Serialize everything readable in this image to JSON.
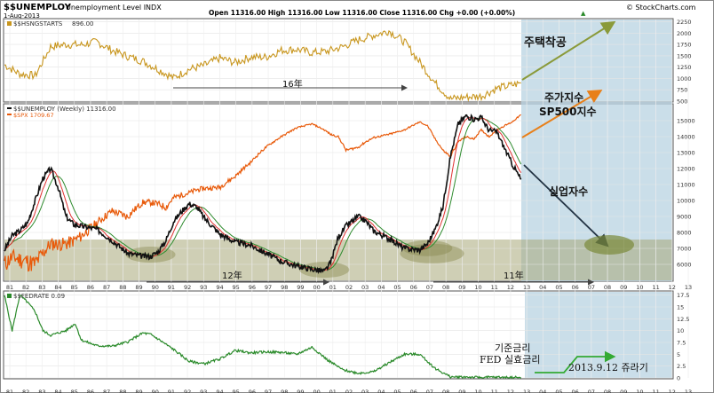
{
  "header": {
    "symbol": "$$UNEMPLOY",
    "name": "Unemployment Level INDX",
    "date": "1-Aug-2013",
    "ohlc": "Open 11316.00   High 11316.00   Low 11316.00   Close 11316.00   Chg +0.00 (+0.00%)",
    "arrow_icon": "up-triangle",
    "brand": "© StockCharts.com"
  },
  "colors": {
    "housing": "#c8961e",
    "unemploy": "#111111",
    "spx": "#e85a0a",
    "ma_red": "#e03030",
    "ma_green": "#2e8b2e",
    "fed": "#2a8a2a",
    "band": "#a8a878",
    "projection": "#b8d3e2"
  },
  "panels": {
    "housing": {
      "legend_prefix": "■",
      "legend": "$$HSNGSTARTS",
      "last_value": "896.00"
    },
    "unemploy": {
      "legend": "$$UNEMPLOY (Weekly) 11316.00",
      "legend2": "$SPX 1709.67"
    },
    "fed": {
      "legend": "$$FEDRATE 0.09"
    }
  },
  "annotations": {
    "housing_label": "주택착공",
    "span16": "16年",
    "spx_label1": "주가지수",
    "spx_label2": "SP500지수",
    "unemploy_label": "실업자수",
    "span12": "12年",
    "span11": "11年",
    "fed_label1": "기준금리",
    "fed_label2": "FED 실효금리",
    "fed_label3": "2013.9.12 쥬라기"
  },
  "chart_data": [
    {
      "type": "line",
      "title": "$$HSNGSTARTS",
      "x": [
        1980,
        1981,
        1982,
        1983,
        1984,
        1985,
        1986,
        1987,
        1988,
        1989,
        1990,
        1991,
        1992,
        1993,
        1994,
        1995,
        1996,
        1997,
        1998,
        1999,
        2000,
        2001,
        2002,
        2003,
        2004,
        2005,
        2006,
        2007,
        2008,
        2009,
        2010,
        2011,
        2012,
        2013.58
      ],
      "series": [
        {
          "name": "$$HSNGSTARTS",
          "values": [
            1300,
            1100,
            1060,
            1700,
            1750,
            1740,
            1810,
            1620,
            1490,
            1380,
            1200,
            1010,
            1200,
            1290,
            1450,
            1350,
            1470,
            1470,
            1620,
            1640,
            1570,
            1600,
            1700,
            1850,
            1950,
            2050,
            1810,
            1360,
            900,
            550,
            590,
            610,
            780,
            896
          ]
        }
      ],
      "ylim": [
        500,
        2300
      ],
      "yticks": [
        500,
        750,
        1000,
        1250,
        1500,
        1750,
        2000,
        2250
      ]
    },
    {
      "type": "line",
      "title": "$$UNEMPLOY (Weekly)",
      "x": [
        1980,
        1980.5,
        1981,
        1981.5,
        1982,
        1982.5,
        1983,
        1983.5,
        1984,
        1984.5,
        1985,
        1986,
        1987,
        1988,
        1989,
        1989.5,
        1990,
        1990.5,
        1991,
        1991.5,
        1992,
        1992.5,
        1993,
        1994,
        1995,
        1996,
        1997,
        1998,
        1999,
        2000,
        2000.8,
        2001.2,
        2001.7,
        2002.2,
        2003,
        2003.5,
        2004,
        2005,
        2006,
        2007,
        2007.5,
        2008,
        2008.5,
        2009,
        2009.5,
        2010,
        2010.5,
        2011,
        2011.5,
        2012,
        2012.5,
        2013,
        2013.58
      ],
      "series": [
        {
          "name": "$$UNEMPLOY (Weekly)",
          "values": [
            6900,
            7800,
            8100,
            8600,
            10000,
            11400,
            12000,
            10800,
            9000,
            8500,
            8400,
            8200,
            7500,
            6700,
            6500,
            6500,
            6800,
            7500,
            8700,
            9300,
            9800,
            9600,
            8900,
            7900,
            7400,
            7200,
            6700,
            6200,
            5900,
            5700,
            5550,
            6100,
            7700,
            8400,
            9000,
            8700,
            8100,
            7600,
            7000,
            6900,
            7300,
            8200,
            9600,
            12800,
            14800,
            15300,
            15100,
            15200,
            14400,
            14300,
            13300,
            12300,
            11316
          ]
        },
        {
          "name": "$SPX",
          "values": [
            115,
            130,
            125,
            120,
            115,
            140,
            165,
            165,
            165,
            175,
            190,
            240,
            300,
            270,
            350,
            350,
            340,
            320,
            380,
            400,
            415,
            440,
            450,
            460,
            560,
            720,
            950,
            1150,
            1350,
            1450,
            1300,
            1200,
            1150,
            900,
            950,
            1050,
            1130,
            1200,
            1300,
            1500,
            1400,
            1100,
            900,
            800,
            1050,
            1150,
            1100,
            1300,
            1150,
            1300,
            1400,
            1500,
            1709.67
          ]
        }
      ],
      "ylim": [
        5000,
        16000
      ],
      "yticks": [
        6000,
        7000,
        8000,
        9000,
        10000,
        11000,
        12000,
        13000,
        14000,
        15000
      ]
    },
    {
      "type": "line",
      "title": "$$FEDRATE",
      "x": [
        1980,
        1980.5,
        1981,
        1981.5,
        1982,
        1982.5,
        1983,
        1984,
        1984.6,
        1985,
        1986,
        1987,
        1988,
        1989,
        1989.5,
        1990,
        1991,
        1992,
        1993,
        1994,
        1995,
        1996,
        1997,
        1998,
        1999,
        2000,
        2001,
        2002,
        2003,
        2004,
        2005,
        2006,
        2007,
        2008,
        2009,
        2010,
        2011,
        2012,
        2013.58
      ],
      "series": [
        {
          "name": "$$FEDRATE",
          "values": [
            17.5,
            10,
            17.5,
            16,
            14,
            10,
            9,
            10,
            11.5,
            8,
            6.8,
            6.7,
            7.6,
            9.5,
            9.2,
            8.2,
            6,
            3.5,
            3,
            4,
            5.8,
            5.3,
            5.5,
            5.4,
            5,
            6.5,
            3.8,
            1.7,
            1.0,
            1.3,
            3.2,
            5,
            5,
            2,
            0.2,
            0.2,
            0.1,
            0.15,
            0.09
          ]
        }
      ],
      "ylim": [
        0,
        18
      ],
      "yticks": [
        0,
        2.5,
        5,
        7.5,
        10,
        12.5,
        15,
        17.5
      ]
    }
  ],
  "xaxis": {
    "ticks": [
      "81",
      "82",
      "83",
      "84",
      "85",
      "86",
      "87",
      "88",
      "89",
      "90",
      "91",
      "92",
      "93",
      "94",
      "95",
      "96",
      "97",
      "98",
      "99",
      "00",
      "01",
      "02",
      "03",
      "04",
      "05",
      "06",
      "07",
      "08",
      "09",
      "10",
      "11",
      "12",
      "13",
      "04",
      "05",
      "06",
      "07",
      "08",
      "09",
      "10",
      "11",
      "12",
      "13"
    ]
  }
}
